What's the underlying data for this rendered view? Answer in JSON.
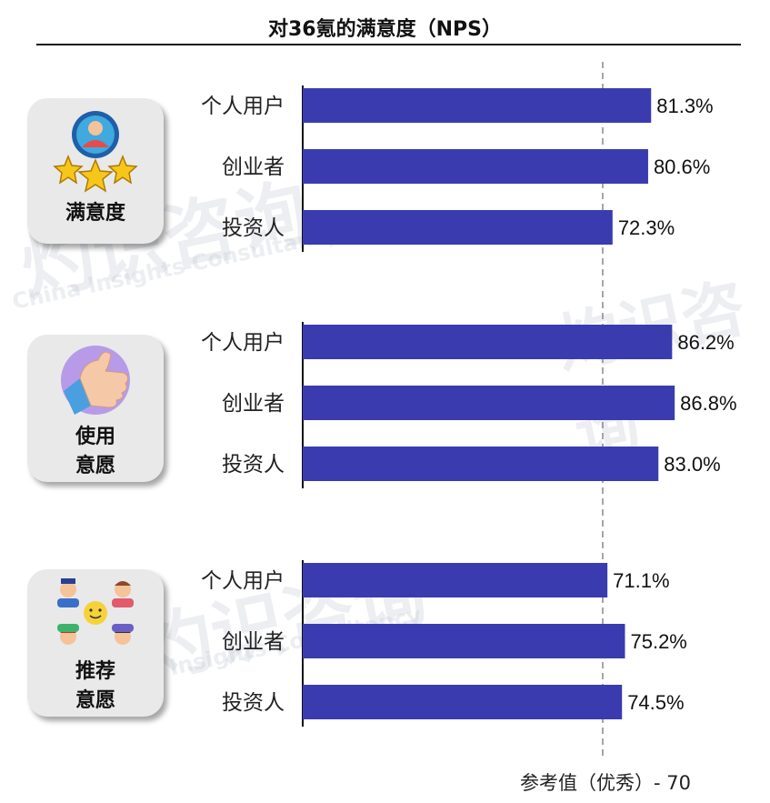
{
  "chart_data": {
    "type": "bar",
    "orientation": "horizontal",
    "title": "对36氪的满意度（NPS）",
    "groups": [
      {
        "name": "满意度",
        "categories": [
          "个人用户",
          "创业者",
          "投资人"
        ],
        "values": [
          81.3,
          80.6,
          72.3
        ]
      },
      {
        "name": "使用意愿",
        "categories": [
          "个人用户",
          "创业者",
          "投资人"
        ],
        "values": [
          86.2,
          86.8,
          83.0
        ]
      },
      {
        "name": "推荐意愿",
        "categories": [
          "个人用户",
          "创业者",
          "投资人"
        ],
        "values": [
          71.1,
          75.2,
          74.5
        ]
      }
    ],
    "value_suffix": "%",
    "reference_line": {
      "value": 70,
      "label": "参考值（优秀）- 70"
    },
    "bar_color": "#3b3bb0",
    "reference_color": "#888888"
  },
  "cards": [
    {
      "label_lines": [
        "满意度"
      ],
      "icon": "user-stars-icon"
    },
    {
      "label_lines": [
        "使用",
        "意愿"
      ],
      "icon": "thumbs-up-icon"
    },
    {
      "label_lines": [
        "推荐",
        "意愿"
      ],
      "icon": "people-group-icon"
    }
  ],
  "watermark": {
    "cn": "灼识咨询",
    "en": "China Insights Consultancy"
  }
}
